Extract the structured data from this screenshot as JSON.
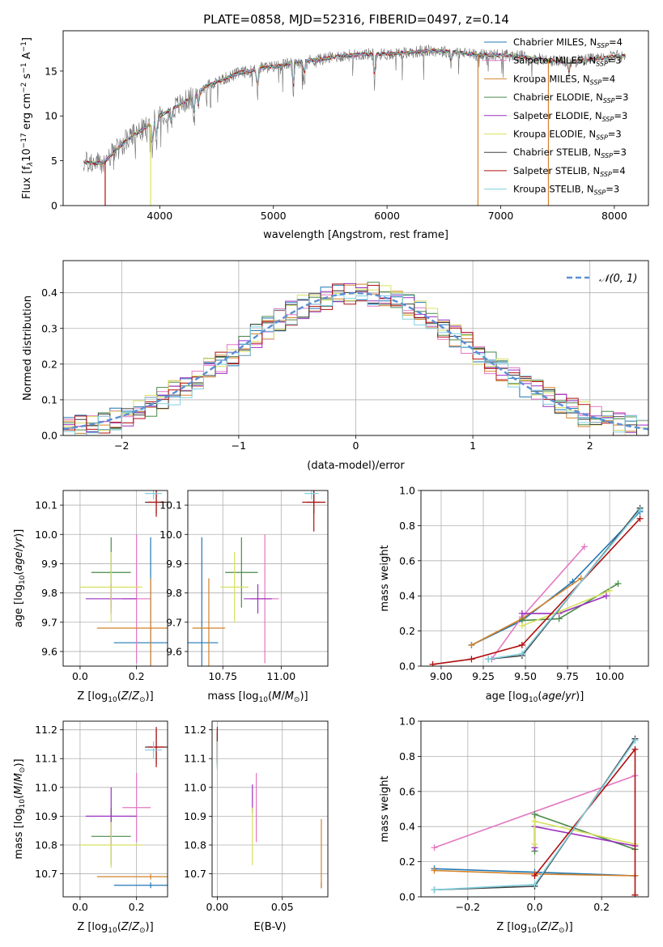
{
  "figure": {
    "title": "PLATE=0858, MJD=52316, FIBERID=0497, z=0.14"
  },
  "models": [
    {
      "name": "Chabrier MILES, N",
      "sub": "SSP",
      "tail": "=4",
      "color": "#1f77b4"
    },
    {
      "name": "Salpeter MILES, N",
      "sub": "SSP",
      "tail": "=3",
      "color": "#e377c2"
    },
    {
      "name": "Kroupa MILES, N",
      "sub": "SSP",
      "tail": "=4",
      "color": "#d4822a"
    },
    {
      "name": "Chabrier ELODIE, N",
      "sub": "SSP",
      "tail": "=3",
      "color": "#4a8a4a"
    },
    {
      "name": "Salpeter ELODIE, N",
      "sub": "SSP",
      "tail": "=3",
      "color": "#9b30c0"
    },
    {
      "name": "Kroupa ELODIE, N",
      "sub": "SSP",
      "tail": "=3",
      "color": "#d8e060"
    },
    {
      "name": "Chabrier STELIB, N",
      "sub": "SSP",
      "tail": "=3",
      "color": "#404040"
    },
    {
      "name": "Salpeter STELIB, N",
      "sub": "SSP",
      "tail": "=4",
      "color": "#b01010"
    },
    {
      "name": "Kroupa STELIB, N",
      "sub": "SSP",
      "tail": "=3",
      "color": "#7fd0e0"
    }
  ],
  "chart_data": [
    {
      "id": "spectrum",
      "type": "line",
      "xlabel": "wavelength [Angstrom, rest frame]",
      "ylabel": "Flux [f",
      "ylabel_parts": [
        "Flux [f",
        "λ",
        "10",
        "−17",
        " erg cm",
        "−2",
        " s",
        "−1",
        " A",
        "−1",
        "]"
      ],
      "xlim": [
        3150,
        8300
      ],
      "ylim": [
        0,
        19.5
      ],
      "xticks": [
        4000,
        5000,
        6000,
        7000,
        8000
      ],
      "yticks": [
        0,
        5,
        10,
        15
      ],
      "x": [
        3350,
        3500,
        3600,
        3700,
        3800,
        3900,
        4000,
        4100,
        4200,
        4300,
        4400,
        4500,
        4600,
        4700,
        4800,
        4900,
        5000,
        5200,
        5400,
        5600,
        5800,
        6000,
        6200,
        6400,
        6600,
        6800,
        7000,
        7200,
        7400,
        7600,
        7800,
        8000,
        8100
      ],
      "y": [
        4.8,
        4.7,
        6.0,
        7.2,
        8.1,
        8.9,
        10.0,
        10.7,
        11.4,
        12.2,
        13.3,
        13.8,
        14.3,
        14.8,
        15.0,
        15.4,
        15.5,
        16.0,
        16.3,
        16.7,
        16.9,
        16.9,
        17.1,
        17.3,
        17.1,
        16.8,
        16.8,
        16.6,
        16.2,
        16.0,
        16.3,
        16.6,
        16.7
      ],
      "legend": "upper right",
      "grid": false
    },
    {
      "id": "residuals",
      "type": "line",
      "xlabel": "(data-model)/error",
      "ylabel": "Normed distribution",
      "xlim": [
        -2.5,
        2.5
      ],
      "ylim": [
        0,
        0.49
      ],
      "xticks": [
        -2,
        -1,
        0,
        1,
        2
      ],
      "yticks": [
        0.0,
        0.1,
        0.2,
        0.3,
        0.4
      ],
      "bin_width": 0.1,
      "gaussian_label": "𝒩(0, 1)",
      "legend": "upper right",
      "grid": true
    },
    {
      "id": "age-vs-Z",
      "type": "scatter",
      "xlabel": "Z [log",
      "ylabel": "age  [log",
      "xlim": [
        -0.06,
        0.31
      ],
      "ylim": [
        9.55,
        10.15
      ],
      "xticks": [
        0.0,
        0.2
      ],
      "yticks": [
        9.6,
        9.7,
        9.8,
        9.9,
        10.0,
        10.1
      ],
      "points": [
        {
          "x": 0.25,
          "y": 9.63,
          "xerr": 0.13,
          "yerr": 0.36
        },
        {
          "x": 0.2,
          "y": 9.78,
          "xerr": 0.05,
          "yerr": 0.22
        },
        {
          "x": 0.25,
          "y": 9.68,
          "xerr": 0.19,
          "yerr": 0.17
        },
        {
          "x": 0.11,
          "y": 9.87,
          "xerr": 0.07,
          "yerr": 0.12
        },
        {
          "x": 0.11,
          "y": 9.78,
          "xerr": 0.09,
          "yerr": 0.05
        },
        {
          "x": 0.11,
          "y": 9.82,
          "xerr": 0.11,
          "yerr": 0.12
        },
        {
          "x": 0.27,
          "y": 10.11,
          "xerr": 0.04,
          "yerr": 0.04
        },
        {
          "x": 0.27,
          "y": 10.11,
          "xerr": 0.03,
          "yerr": 0.05
        },
        {
          "x": 0.26,
          "y": 10.14,
          "xerr": 0.03,
          "yerr": 0.02
        }
      ],
      "grid": true
    },
    {
      "id": "age-vs-mass",
      "type": "scatter",
      "xlabel": "mass [log",
      "xlim": [
        10.6,
        11.2
      ],
      "ylim": [
        9.55,
        10.15
      ],
      "xticks": [
        10.75,
        11.0
      ],
      "yticks": [
        9.6,
        9.7,
        9.8,
        9.9,
        10.0,
        10.1
      ],
      "points": [
        {
          "x": 10.66,
          "y": 9.63,
          "xerr": 0.07,
          "yerr": 0.36
        },
        {
          "x": 10.93,
          "y": 9.78,
          "xerr": 0.06,
          "yerr": 0.22
        },
        {
          "x": 10.69,
          "y": 9.68,
          "xerr": 0.07,
          "yerr": 0.17
        },
        {
          "x": 10.83,
          "y": 9.87,
          "xerr": 0.07,
          "yerr": 0.12
        },
        {
          "x": 10.9,
          "y": 9.78,
          "xerr": 0.06,
          "yerr": 0.05
        },
        {
          "x": 10.8,
          "y": 9.82,
          "xerr": 0.06,
          "yerr": 0.12
        },
        {
          "x": 11.14,
          "y": 10.11,
          "xerr": 0.03,
          "yerr": 0.04
        },
        {
          "x": 11.14,
          "y": 10.11,
          "xerr": 0.05,
          "yerr": 0.1
        },
        {
          "x": 11.13,
          "y": 10.14,
          "xerr": 0.03,
          "yerr": 0.02
        }
      ],
      "grid": true
    },
    {
      "id": "weight-vs-age",
      "type": "line",
      "xlabel": "age  [log",
      "ylabel": "mass weight",
      "xlim": [
        8.88,
        10.23
      ],
      "ylim": [
        0,
        1
      ],
      "xticks": [
        9.0,
        9.25,
        9.5,
        9.75,
        10.0
      ],
      "yticks": [
        0.0,
        0.2,
        0.4,
        0.6,
        0.8,
        1.0
      ],
      "series": [
        {
          "x": [
            9.18,
            9.48,
            9.78,
            10.18
          ],
          "y": [
            0.12,
            0.26,
            0.48,
            0.88
          ]
        },
        {
          "x": [
            9.3,
            9.48,
            9.85
          ],
          "y": [
            0.04,
            0.28,
            0.68
          ]
        },
        {
          "x": [
            9.18,
            9.48,
            9.83
          ],
          "y": [
            0.12,
            0.27,
            0.5
          ]
        },
        {
          "x": [
            9.48,
            9.7,
            10.05
          ],
          "y": [
            0.26,
            0.27,
            0.47
          ]
        },
        {
          "x": [
            9.48,
            9.7,
            9.98
          ],
          "y": [
            0.3,
            0.3,
            0.4
          ]
        },
        {
          "x": [
            9.48,
            9.7,
            10.0
          ],
          "y": [
            0.23,
            0.31,
            0.43
          ]
        },
        {
          "x": [
            9.28,
            9.48,
            10.18
          ],
          "y": [
            0.04,
            0.06,
            0.9
          ]
        },
        {
          "x": [
            8.95,
            9.18,
            9.48,
            10.18
          ],
          "y": [
            0.01,
            0.04,
            0.12,
            0.84
          ]
        },
        {
          "x": [
            9.28,
            9.48,
            10.18
          ],
          "y": [
            0.04,
            0.07,
            0.89
          ]
        }
      ],
      "grid": true
    },
    {
      "id": "mass-vs-Z",
      "type": "scatter",
      "xlabel": "Z [log",
      "ylabel": "mass [log",
      "xlim": [
        -0.06,
        0.31
      ],
      "ylim": [
        10.62,
        11.23
      ],
      "xticks": [
        0.0,
        0.2
      ],
      "yticks": [
        10.7,
        10.8,
        10.9,
        11.0,
        11.1,
        11.2
      ],
      "points": [
        {
          "x": 0.25,
          "y": 10.66,
          "xerr": 0.13,
          "yerr": 0.01
        },
        {
          "x": 0.2,
          "y": 10.93,
          "xerr": 0.05,
          "yerr": 0.12
        },
        {
          "x": 0.25,
          "y": 10.69,
          "xerr": 0.19,
          "yerr": 0.01
        },
        {
          "x": 0.11,
          "y": 10.83,
          "xerr": 0.07,
          "yerr": 0.1
        },
        {
          "x": 0.11,
          "y": 10.9,
          "xerr": 0.09,
          "yerr": 0.1
        },
        {
          "x": 0.11,
          "y": 10.8,
          "xerr": 0.11,
          "yerr": 0.08
        },
        {
          "x": 0.27,
          "y": 11.14,
          "xerr": 0.04,
          "yerr": 0.06
        },
        {
          "x": 0.27,
          "y": 11.14,
          "xerr": 0.03,
          "yerr": 0.07
        },
        {
          "x": 0.26,
          "y": 11.13,
          "xerr": 0.03,
          "yerr": 0.03
        }
      ],
      "grid": true
    },
    {
      "id": "mass-vs-ebv",
      "type": "scatter",
      "xlabel": "E(B-V)",
      "xlim": [
        -0.004,
        0.085
      ],
      "ylim": [
        10.62,
        11.23
      ],
      "xticks": [
        0.0,
        0.05
      ],
      "yticks": [
        10.7,
        10.8,
        10.9,
        11.0,
        11.1,
        11.2
      ],
      "points": [
        {
          "x": 0.08,
          "y": 10.66,
          "xerr": 0,
          "yerr": 0.01
        },
        {
          "x": 0.03,
          "y": 10.93,
          "xerr": 0,
          "yerr": 0.12
        },
        {
          "x": 0.08,
          "y": 10.77,
          "xerr": 0,
          "yerr": 0.12
        },
        {
          "x": 0.0,
          "y": 11.13,
          "xerr": 0,
          "yerr": 0.06
        },
        {
          "x": 0.027,
          "y": 10.96,
          "xerr": 0,
          "yerr": 0.05
        },
        {
          "x": 0.027,
          "y": 10.83,
          "xerr": 0,
          "yerr": 0.1
        },
        {
          "x": 0.0,
          "y": 11.14,
          "xerr": 0,
          "yerr": 0.06
        },
        {
          "x": 0.0,
          "y": 11.15,
          "xerr": 0,
          "yerr": 0.06
        },
        {
          "x": 0.0,
          "y": 11.11,
          "xerr": 0,
          "yerr": 0.05
        }
      ],
      "grid": true
    },
    {
      "id": "weight-vs-Z",
      "type": "line",
      "xlabel": "Z [log",
      "ylabel": "mass weight",
      "xlim": [
        -0.34,
        0.34
      ],
      "ylim": [
        0,
        1
      ],
      "xticks": [
        -0.2,
        0.0,
        0.2
      ],
      "yticks": [
        0.0,
        0.2,
        0.4,
        0.6,
        0.8,
        1.0
      ],
      "series": [
        {
          "x": [
            -0.3,
            0.0,
            0.3
          ],
          "y": [
            0.16,
            0.14,
            0.12
          ]
        },
        {
          "x": [
            -0.3,
            0.3
          ],
          "y": [
            0.28,
            0.69
          ]
        },
        {
          "x": [
            -0.3,
            0.0,
            0.3
          ],
          "y": [
            0.15,
            0.13,
            0.12
          ]
        },
        {
          "x": [
            0.0,
            0.0,
            0.3
          ],
          "y": [
            0.26,
            0.47,
            0.27
          ]
        },
        {
          "x": [
            0.0,
            0.0,
            0.3
          ],
          "y": [
            0.28,
            0.4,
            0.29
          ]
        },
        {
          "x": [
            0.0,
            0.0,
            0.3
          ],
          "y": [
            0.3,
            0.43,
            0.3
          ]
        },
        {
          "x": [
            -0.3,
            0.0,
            0.3
          ],
          "y": [
            0.04,
            0.06,
            0.9
          ]
        },
        {
          "x": [
            0.0,
            0.3,
            0.3
          ],
          "y": [
            0.12,
            0.84,
            0.01
          ]
        },
        {
          "x": [
            -0.3,
            0.0,
            0.3
          ],
          "y": [
            0.04,
            0.07,
            0.89
          ]
        }
      ],
      "grid": true
    }
  ]
}
